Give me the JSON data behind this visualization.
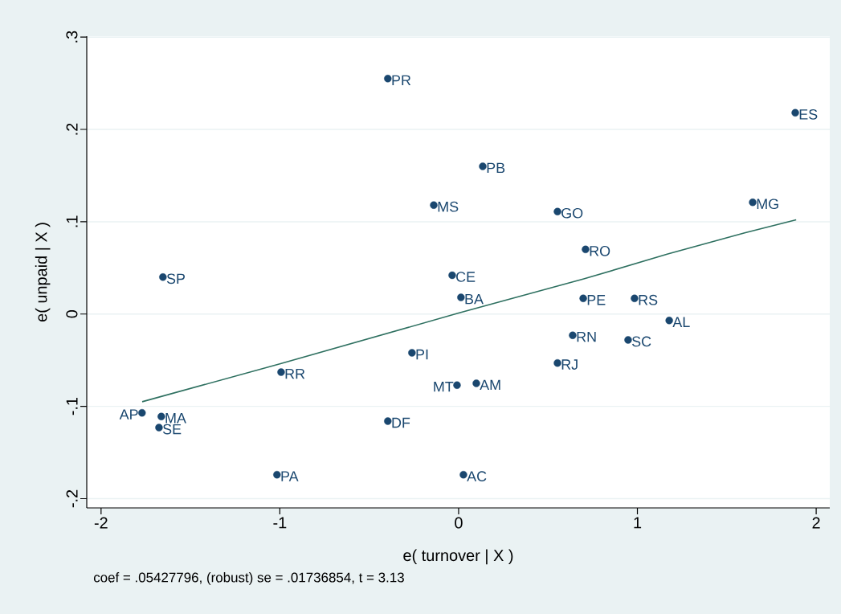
{
  "chart_data": {
    "type": "scatter",
    "xlabel": "e( turnover | X )",
    "ylabel": "e( unpaid | X )",
    "xlim": [
      -2.08,
      2.076
    ],
    "ylim": [
      -0.21,
      0.301
    ],
    "xticks": [
      -2,
      -1,
      0,
      1,
      2
    ],
    "yticks": [
      {
        "value": -0.2,
        "label": "-.2"
      },
      {
        "value": -0.1,
        "label": "-.1"
      },
      0,
      {
        "value": 0.1,
        "label": ".1"
      },
      {
        "value": 0.2,
        "label": ".2"
      },
      {
        "value": 0.3,
        "label": ".3"
      }
    ],
    "grid": "y",
    "series": [
      {
        "marker": "circle",
        "color": "#1a476f",
        "x": [
          -0.396,
          1.883,
          0.135,
          -0.139,
          0.553,
          1.645,
          0.71,
          -1.654,
          -0.036,
          0.013,
          0.697,
          0.984,
          1.178,
          0.638,
          0.948,
          -0.261,
          -0.993,
          0.553,
          -0.009,
          0.099,
          -1.771,
          -1.663,
          -1.676,
          -0.396,
          -1.016,
          0.027
        ],
        "values": [
          0.255,
          0.218,
          0.16,
          0.118,
          0.111,
          0.121,
          0.07,
          0.04,
          0.042,
          0.018,
          0.017,
          0.017,
          -0.007,
          -0.023,
          -0.028,
          -0.042,
          -0.063,
          -0.053,
          -0.077,
          -0.075,
          -0.107,
          -0.111,
          -0.123,
          -0.116,
          -0.174,
          -0.174
        ]
      },
      {
        "type": "line",
        "marker": "none",
        "color": "#2e7060",
        "x": [
          -1.77,
          -1.0,
          0.0,
          0.7,
          1.17,
          1.6,
          1.888
        ],
        "values": [
          -0.095,
          -0.054,
          0.001,
          0.038,
          0.065,
          0.088,
          0.102
        ]
      }
    ],
    "annotations": [
      {
        "text": "PR",
        "x": -0.396,
        "y": 0.255
      },
      {
        "text": "ES",
        "x": 1.883,
        "y": 0.218
      },
      {
        "text": "PB",
        "x": 0.135,
        "y": 0.16
      },
      {
        "text": "MS",
        "x": -0.139,
        "y": 0.118
      },
      {
        "text": "GO",
        "x": 0.553,
        "y": 0.111
      },
      {
        "text": "MG",
        "x": 1.645,
        "y": 0.121
      },
      {
        "text": "RO",
        "x": 0.71,
        "y": 0.07
      },
      {
        "text": "SP",
        "x": -1.654,
        "y": 0.04
      },
      {
        "text": "CE",
        "x": -0.036,
        "y": 0.042
      },
      {
        "text": "BA",
        "x": 0.013,
        "y": 0.018
      },
      {
        "text": "PE",
        "x": 0.697,
        "y": 0.017
      },
      {
        "text": "RS",
        "x": 0.984,
        "y": 0.017
      },
      {
        "text": "AL",
        "x": 1.178,
        "y": -0.007
      },
      {
        "text": "RN",
        "x": 0.638,
        "y": -0.023
      },
      {
        "text": "SC",
        "x": 0.948,
        "y": -0.028
      },
      {
        "text": "PI",
        "x": -0.261,
        "y": -0.042
      },
      {
        "text": "RR",
        "x": -0.993,
        "y": -0.063
      },
      {
        "text": "RJ",
        "x": 0.553,
        "y": -0.053
      },
      {
        "text": "MT",
        "x": -0.009,
        "y": -0.077
      },
      {
        "text": "AM",
        "x": 0.099,
        "y": -0.075
      },
      {
        "text": "AP",
        "x": -1.771,
        "y": -0.107
      },
      {
        "text": "MA",
        "x": -1.663,
        "y": -0.111
      },
      {
        "text": "SE",
        "x": -1.676,
        "y": -0.123
      },
      {
        "text": "DF",
        "x": -0.396,
        "y": -0.116
      },
      {
        "text": "PA",
        "x": -1.016,
        "y": -0.174
      },
      {
        "text": "AC",
        "x": 0.027,
        "y": -0.174
      },
      "coef = .05427796, (robust) se = .01736854, t = 3.13"
    ]
  }
}
